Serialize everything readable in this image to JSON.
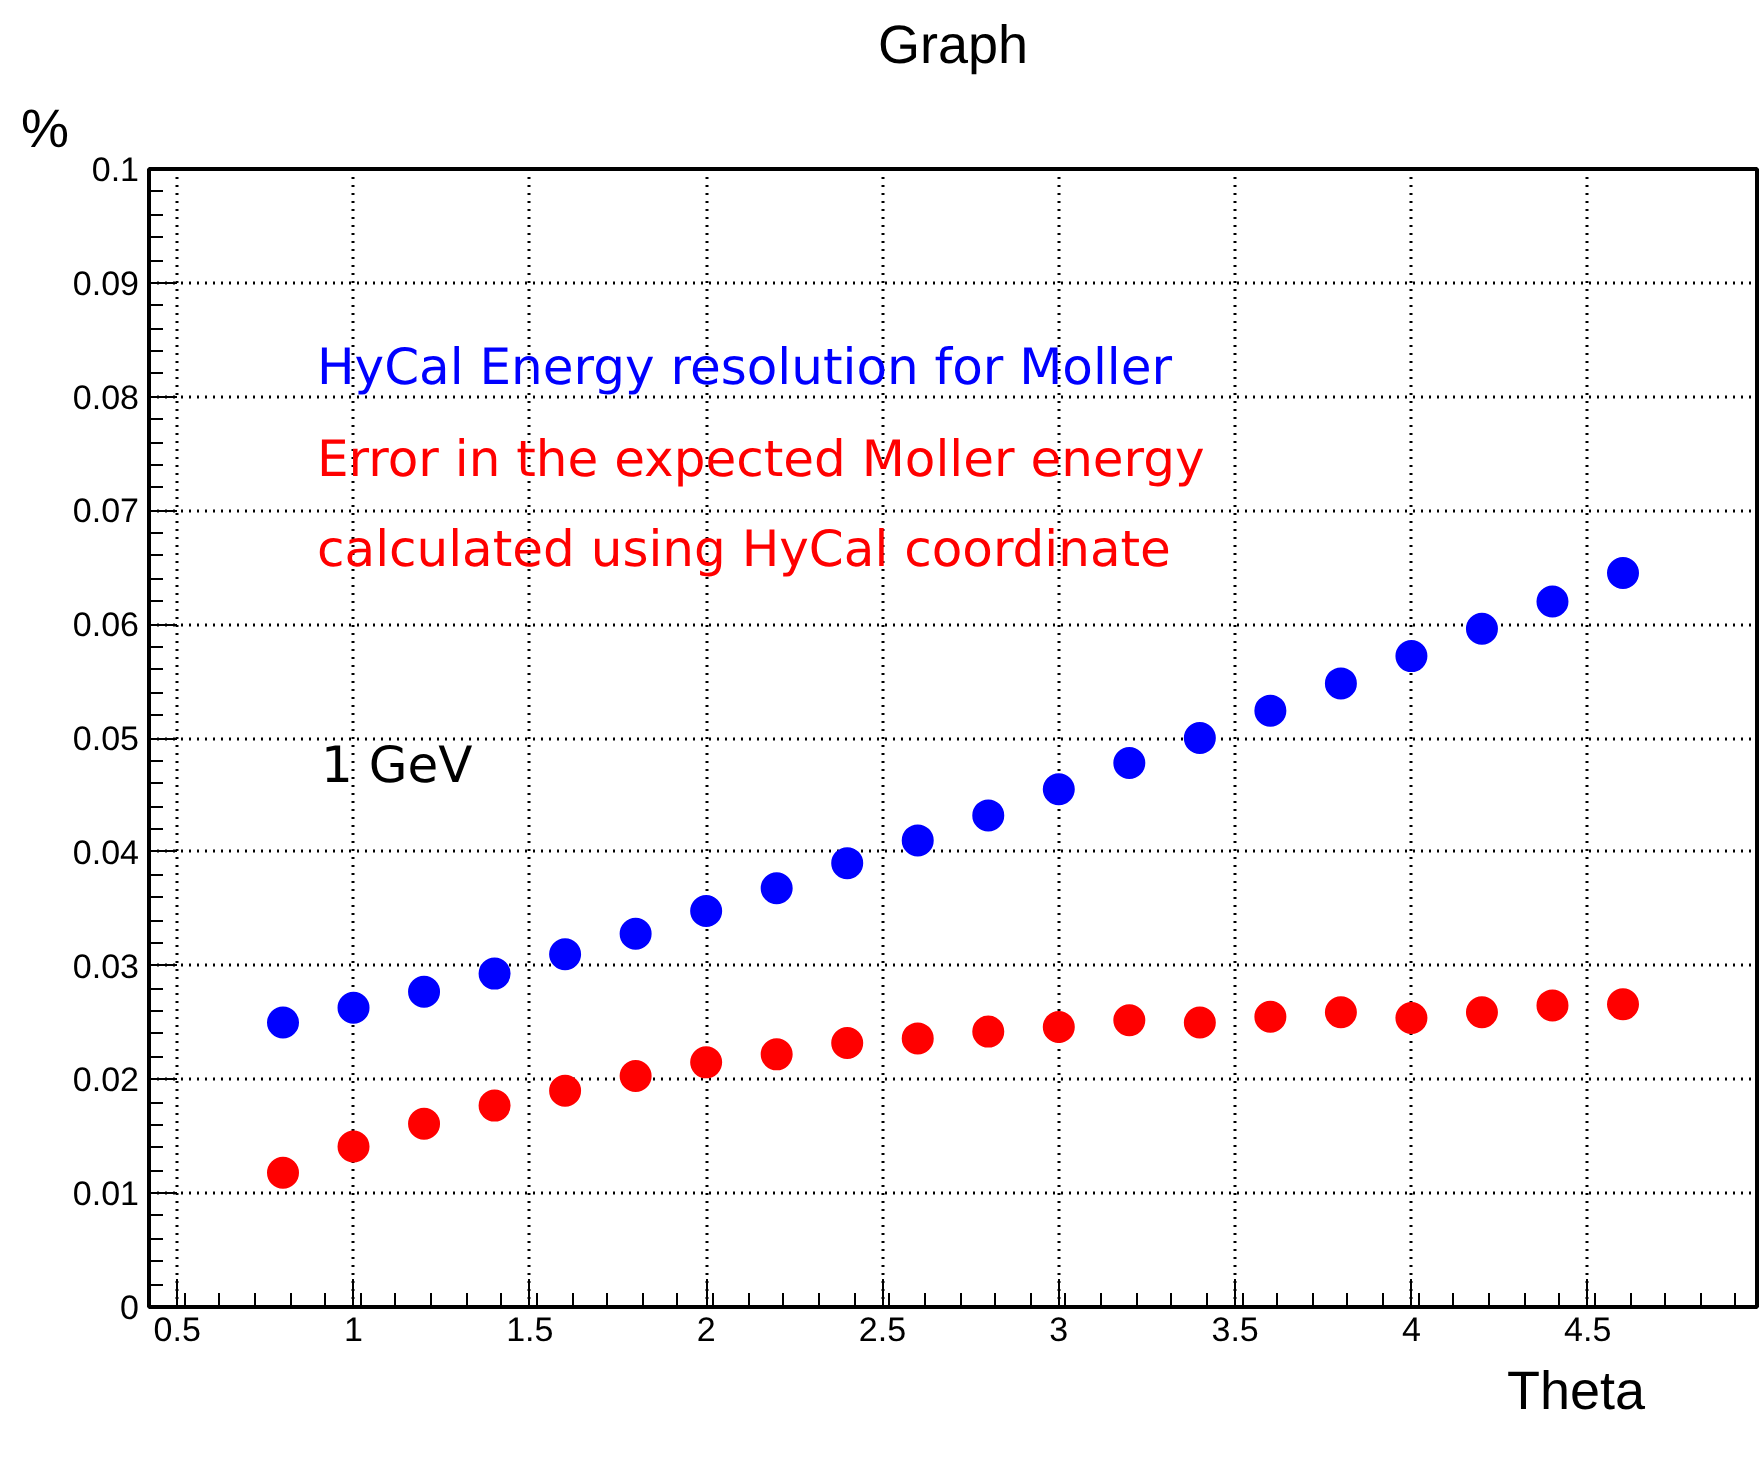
{
  "chart_data": {
    "type": "scatter",
    "title": "Graph",
    "xlabel": "Theta",
    "ylabel": "%",
    "x": [
      0.8,
      1.0,
      1.2,
      1.4,
      1.6,
      1.8,
      2.0,
      2.2,
      2.4,
      2.6,
      2.8,
      3.0,
      3.2,
      3.4,
      3.6,
      3.8,
      4.0,
      4.2,
      4.4,
      4.6
    ],
    "series": [
      {
        "name": "HyCal Energy resolution for Moller",
        "color": "#0000ff",
        "values": [
          0.025,
          0.0263,
          0.0277,
          0.0293,
          0.031,
          0.0328,
          0.0348,
          0.0368,
          0.039,
          0.041,
          0.0432,
          0.0455,
          0.0478,
          0.05,
          0.0524,
          0.0548,
          0.0572,
          0.0596,
          0.062,
          0.0645
        ]
      },
      {
        "name": "Error in the expected Moller energy\ncalculated using HyCal coordinate",
        "color": "#ff0000",
        "values": [
          0.0118,
          0.0141,
          0.0161,
          0.0177,
          0.019,
          0.0203,
          0.0215,
          0.0222,
          0.0232,
          0.0236,
          0.0242,
          0.0246,
          0.0252,
          0.025,
          0.0255,
          0.0259,
          0.0254,
          0.0259,
          0.0265,
          0.0266
        ]
      }
    ],
    "annotations": [
      "1 GeV"
    ],
    "xlim": [
      0.42,
      4.98
    ],
    "xticks": [
      0.5,
      1,
      1.5,
      2,
      2.5,
      3,
      3.5,
      4,
      4.5
    ],
    "ylim": [
      0,
      0.1
    ],
    "yticks": [
      0,
      0.01,
      0.02,
      0.03,
      0.04,
      0.05,
      0.06,
      0.07,
      0.08,
      0.09,
      0.1
    ],
    "grid": true,
    "marker": "circle"
  }
}
